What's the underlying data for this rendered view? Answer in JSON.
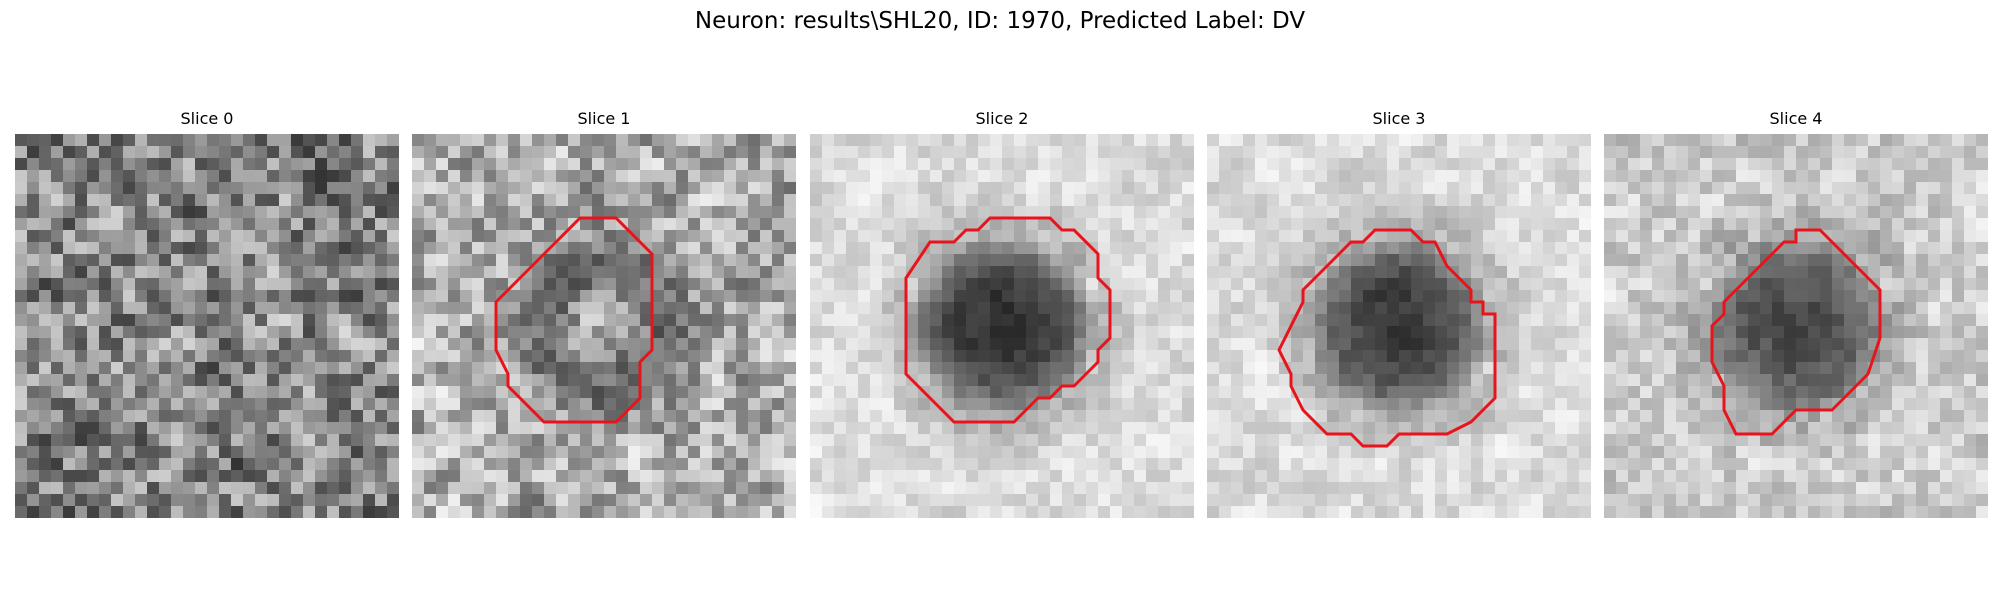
{
  "figure": {
    "title": "Neuron: results\\SHL20, ID: 1970, Predicted Label: DV"
  },
  "contour_color": "#e8141b",
  "panels": [
    {
      "title": "Slice 0",
      "has_contour": false,
      "seed": 11,
      "dark_blob": 0.0,
      "ring": false,
      "bg_brightness": 0.52,
      "noise": 0.42
    },
    {
      "title": "Slice 1",
      "has_contour": true,
      "seed": 23,
      "dark_blob": 0.45,
      "ring": true,
      "bg_brightness": 0.68,
      "noise": 0.36
    },
    {
      "title": "Slice 2",
      "has_contour": true,
      "seed": 37,
      "dark_blob": 0.85,
      "ring": false,
      "bg_brightness": 0.86,
      "noise": 0.14
    },
    {
      "title": "Slice 3",
      "has_contour": true,
      "seed": 41,
      "dark_blob": 0.82,
      "ring": false,
      "bg_brightness": 0.86,
      "noise": 0.14
    },
    {
      "title": "Slice 4",
      "has_contour": true,
      "seed": 53,
      "dark_blob": 0.7,
      "ring": false,
      "bg_brightness": 0.8,
      "noise": 0.2
    }
  ]
}
